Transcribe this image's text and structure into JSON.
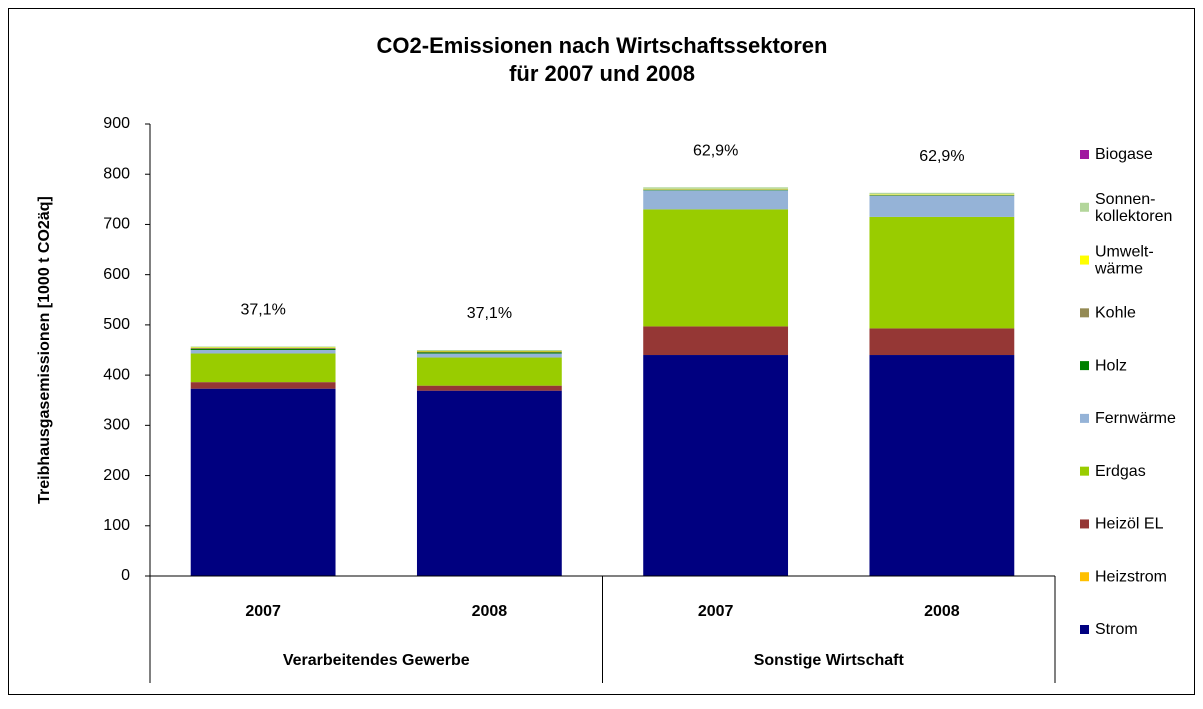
{
  "chart_data": {
    "type": "stacked_bar",
    "title": "CO2-Emissionen nach Wirtschaftssektoren\nfür 2007 und 2008",
    "ylabel": "Treibhausgasemissionen [1000 t CO2äq]",
    "categories": [
      "2007",
      "2008",
      "2007",
      "2008"
    ],
    "groups": [
      "Verarbeitendes Gewerbe",
      "Sonstige Wirtschaft"
    ],
    "bar_labels": [
      "37,1%",
      "37,1%",
      "62,9%",
      "62,9%"
    ],
    "series": [
      {
        "name": "Strom",
        "color": "#000080",
        "values": [
          373,
          369,
          440,
          440
        ]
      },
      {
        "name": "Heizstrom",
        "color": "#FFC000",
        "values": [
          0,
          0,
          0,
          0
        ]
      },
      {
        "name": "Heizöl EL",
        "color": "#953735",
        "values": [
          13,
          10,
          57,
          53
        ]
      },
      {
        "name": "Erdgas",
        "color": "#99CC00",
        "values": [
          57,
          56,
          233,
          222
        ]
      },
      {
        "name": "Fernwärme",
        "color": "#95B3D7",
        "values": [
          7,
          8,
          38,
          42
        ]
      },
      {
        "name": "Holz",
        "color": "#008000",
        "values": [
          2,
          2,
          1,
          1
        ]
      },
      {
        "name": "Kohle",
        "color": "#948A54",
        "values": [
          2,
          2,
          1,
          1
        ]
      },
      {
        "name": "Umwelt-\nwärme",
        "color": "#FFFF00",
        "values": [
          1,
          1,
          1,
          1
        ]
      },
      {
        "name": "Sonnen-\nkollektoren",
        "color": "#B3D69B",
        "values": [
          2,
          2,
          3,
          3
        ]
      },
      {
        "name": "Biogase",
        "color": "#A0179F",
        "values": [
          0,
          0,
          0,
          0
        ]
      }
    ],
    "ylim": [
      0,
      900
    ],
    "yticks": [
      0,
      100,
      200,
      300,
      400,
      500,
      600,
      700,
      800,
      900
    ],
    "grid": false,
    "legend": "right"
  }
}
